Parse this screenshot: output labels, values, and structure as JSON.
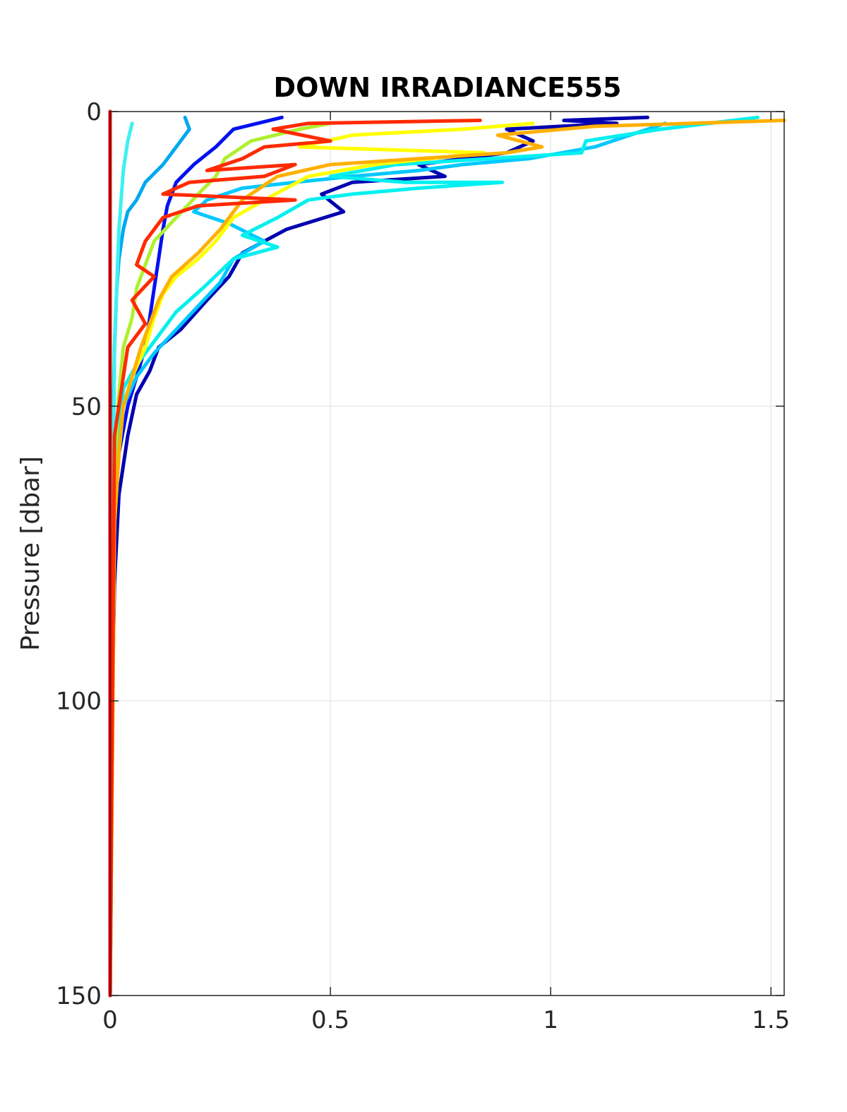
{
  "chart_data": {
    "type": "line",
    "title": "DOWN IRRADIANCE555",
    "xlabel": "",
    "ylabel": "Pressure [dbar]",
    "xlim": [
      0,
      1.53
    ],
    "ylim": [
      0,
      150
    ],
    "y_reversed": true,
    "grid": true,
    "x_ticks": [
      {
        "value": 0,
        "label": "0"
      },
      {
        "value": 0.5,
        "label": "0.5"
      },
      {
        "value": 1,
        "label": "1"
      },
      {
        "value": 1.5,
        "label": "1.5"
      }
    ],
    "y_ticks": [
      {
        "value": 0,
        "label": "0"
      },
      {
        "value": 50,
        "label": "50"
      },
      {
        "value": 100,
        "label": "100"
      },
      {
        "value": 150,
        "label": "150"
      }
    ],
    "series": [
      {
        "color": "#0000b0",
        "points": [
          [
            1.22,
            1
          ],
          [
            1.03,
            1.5
          ],
          [
            1.15,
            2
          ],
          [
            0.9,
            3
          ],
          [
            0.96,
            5
          ],
          [
            0.9,
            7
          ],
          [
            0.7,
            9
          ],
          [
            0.76,
            11
          ],
          [
            0.55,
            12
          ],
          [
            0.48,
            14
          ],
          [
            0.53,
            17
          ],
          [
            0.4,
            20
          ],
          [
            0.3,
            24
          ],
          [
            0.27,
            28
          ],
          [
            0.22,
            32
          ],
          [
            0.16,
            37
          ],
          [
            0.11,
            40
          ],
          [
            0.09,
            44
          ],
          [
            0.06,
            48
          ],
          [
            0.04,
            55
          ],
          [
            0.02,
            65
          ],
          [
            0.01,
            80
          ],
          [
            0.005,
            100
          ],
          [
            0,
            150
          ]
        ]
      },
      {
        "color": "#0010f0",
        "points": [
          [
            0.39,
            1
          ],
          [
            0.28,
            3
          ],
          [
            0.24,
            6
          ],
          [
            0.19,
            9
          ],
          [
            0.15,
            12
          ],
          [
            0.13,
            16
          ],
          [
            0.12,
            20
          ],
          [
            0.11,
            25
          ],
          [
            0.1,
            30
          ],
          [
            0.09,
            35
          ],
          [
            0.08,
            40
          ],
          [
            0.06,
            45
          ],
          [
            0.04,
            50
          ],
          [
            0.02,
            58
          ],
          [
            0.01,
            70
          ],
          [
            0.005,
            90
          ],
          [
            0,
            150
          ]
        ]
      },
      {
        "color": "#00a8f0",
        "points": [
          [
            0.17,
            1
          ],
          [
            0.18,
            3
          ],
          [
            0.15,
            6
          ],
          [
            0.12,
            9
          ],
          [
            0.08,
            12
          ],
          [
            0.06,
            15
          ],
          [
            0.04,
            17
          ],
          [
            0.03,
            20
          ],
          [
            0.02,
            25
          ],
          [
            0.015,
            30
          ],
          [
            0.01,
            40
          ],
          [
            0.005,
            60
          ],
          [
            0,
            150
          ]
        ]
      },
      {
        "color": "#00c8ff",
        "points": [
          [
            1.26,
            2
          ],
          [
            1.18,
            4
          ],
          [
            1.1,
            6
          ],
          [
            0.95,
            8
          ],
          [
            0.8,
            9
          ],
          [
            0.7,
            10
          ],
          [
            0.55,
            11
          ],
          [
            0.42,
            12
          ],
          [
            0.3,
            13
          ],
          [
            0.22,
            15
          ],
          [
            0.19,
            17
          ],
          [
            0.27,
            19
          ],
          [
            0.35,
            22
          ],
          [
            0.28,
            25
          ],
          [
            0.25,
            29
          ],
          [
            0.2,
            33
          ],
          [
            0.15,
            37
          ],
          [
            0.1,
            41
          ],
          [
            0.06,
            45
          ],
          [
            0.03,
            50
          ],
          [
            0.01,
            60
          ],
          [
            0.005,
            80
          ],
          [
            0,
            150
          ]
        ]
      },
      {
        "color": "#00f0f0",
        "points": [
          [
            1.47,
            1
          ],
          [
            1.25,
            3
          ],
          [
            1.08,
            5
          ],
          [
            1.07,
            7
          ],
          [
            0.65,
            9
          ],
          [
            0.5,
            11
          ],
          [
            0.67,
            12
          ],
          [
            0.89,
            12
          ],
          [
            0.7,
            13
          ],
          [
            0.55,
            14
          ],
          [
            0.45,
            15
          ],
          [
            0.38,
            18
          ],
          [
            0.3,
            21
          ],
          [
            0.38,
            23
          ],
          [
            0.28,
            25
          ],
          [
            0.21,
            30
          ],
          [
            0.15,
            34
          ],
          [
            0.1,
            39
          ],
          [
            0.06,
            43
          ],
          [
            0.03,
            47
          ],
          [
            0.02,
            55
          ],
          [
            0.01,
            70
          ],
          [
            0,
            150
          ]
        ]
      },
      {
        "color": "#40f0f0",
        "points": [
          [
            0.05,
            2
          ],
          [
            0.04,
            5
          ],
          [
            0.03,
            10
          ],
          [
            0.02,
            20
          ],
          [
            0.01,
            40
          ],
          [
            0.005,
            80
          ],
          [
            0,
            150
          ]
        ]
      },
      {
        "color": "#b0f030",
        "points": [
          [
            0.5,
            2
          ],
          [
            0.43,
            3
          ],
          [
            0.32,
            5
          ],
          [
            0.26,
            8
          ],
          [
            0.24,
            11
          ],
          [
            0.2,
            14
          ],
          [
            0.15,
            18
          ],
          [
            0.1,
            22
          ],
          [
            0.08,
            26
          ],
          [
            0.06,
            30
          ],
          [
            0.05,
            35
          ],
          [
            0.03,
            40
          ],
          [
            0.02,
            48
          ],
          [
            0.01,
            60
          ],
          [
            0,
            150
          ]
        ]
      },
      {
        "color": "#ffff00",
        "points": [
          [
            0.96,
            2
          ],
          [
            0.8,
            3
          ],
          [
            0.55,
            4
          ],
          [
            0.43,
            6
          ],
          [
            0.85,
            7
          ],
          [
            0.6,
            9
          ],
          [
            0.45,
            11
          ],
          [
            0.35,
            15
          ],
          [
            0.28,
            18
          ],
          [
            0.24,
            22
          ],
          [
            0.2,
            25
          ],
          [
            0.15,
            28
          ],
          [
            0.12,
            31
          ],
          [
            0.1,
            35
          ],
          [
            0.08,
            40
          ],
          [
            0.05,
            45
          ],
          [
            0.03,
            50
          ],
          [
            0.02,
            58
          ],
          [
            0.01,
            70
          ],
          [
            0,
            150
          ]
        ]
      },
      {
        "color": "#ffb000",
        "points": [
          [
            1.53,
            1.5
          ],
          [
            1.1,
            2.5
          ],
          [
            0.88,
            4
          ],
          [
            0.98,
            6
          ],
          [
            0.9,
            7
          ],
          [
            0.7,
            8
          ],
          [
            0.5,
            9
          ],
          [
            0.38,
            11
          ],
          [
            0.3,
            15
          ],
          [
            0.25,
            20
          ],
          [
            0.2,
            24
          ],
          [
            0.14,
            28
          ],
          [
            0.11,
            32
          ],
          [
            0.09,
            36
          ],
          [
            0.07,
            40
          ],
          [
            0.05,
            45
          ],
          [
            0.03,
            50
          ],
          [
            0.02,
            58
          ],
          [
            0.01,
            70
          ],
          [
            0,
            150
          ]
        ]
      },
      {
        "color": "#ff2a00",
        "points": [
          [
            0.84,
            1.5
          ],
          [
            0.45,
            2
          ],
          [
            0.37,
            3
          ],
          [
            0.5,
            5
          ],
          [
            0.35,
            6
          ],
          [
            0.3,
            8
          ],
          [
            0.22,
            10
          ],
          [
            0.42,
            9
          ],
          [
            0.35,
            11
          ],
          [
            0.18,
            12
          ],
          [
            0.12,
            14
          ],
          [
            0.42,
            15
          ],
          [
            0.2,
            16
          ],
          [
            0.12,
            18
          ],
          [
            0.08,
            22
          ],
          [
            0.06,
            26
          ],
          [
            0.1,
            28
          ],
          [
            0.05,
            32
          ],
          [
            0.08,
            36
          ],
          [
            0.04,
            40
          ],
          [
            0.03,
            45
          ],
          [
            0.01,
            55
          ],
          [
            0,
            150
          ]
        ]
      },
      {
        "color": "#ff0000",
        "points": [
          [
            0,
            0
          ],
          [
            0,
            150
          ]
        ]
      }
    ]
  }
}
